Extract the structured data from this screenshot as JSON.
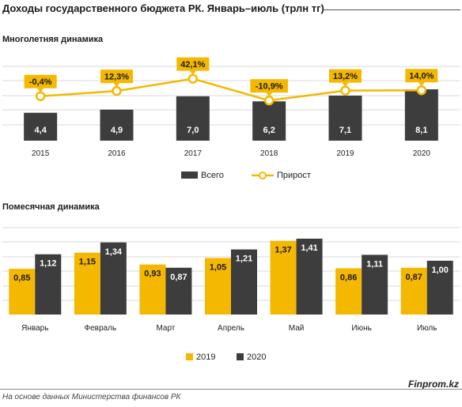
{
  "header": {
    "title": "Доходы государственного бюджета РК. Январь–июль (трлн тг)"
  },
  "colors": {
    "total": "#3d3d3d",
    "growth": "#f5b800",
    "y2019": "#f5b800",
    "y2020": "#3d3d3d",
    "grid": "#d9d9d9"
  },
  "chart_data": [
    {
      "type": "bar",
      "subtitle": "Многолетняя динамика",
      "categories": [
        "2015",
        "2016",
        "2017",
        "2018",
        "2019",
        "2020"
      ],
      "series": [
        {
          "name": "Всего",
          "type": "bar",
          "values": [
            4.4,
            4.9,
            7.0,
            6.2,
            7.1,
            8.1
          ],
          "labels": [
            "4,4",
            "4,9",
            "7,0",
            "6,2",
            "7,1",
            "8,1"
          ]
        },
        {
          "name": "Прирост",
          "type": "line",
          "values": [
            -0.4,
            12.3,
            42.1,
            -10.9,
            13.2,
            14.0
          ],
          "labels": [
            "-0,4%",
            "12,3%",
            "42,1%",
            "-10,9%",
            "13,2%",
            "14,0%"
          ]
        }
      ],
      "grid": true,
      "legend_position": "bottom"
    },
    {
      "type": "bar",
      "subtitle": "Помесячная  динамика",
      "categories": [
        "Январь",
        "Февраль",
        "Март",
        "Апрель",
        "Май",
        "Июнь",
        "Июль"
      ],
      "series": [
        {
          "name": "2019",
          "values": [
            0.85,
            1.15,
            0.93,
            1.05,
            1.37,
            0.86,
            0.87
          ],
          "labels": [
            "0,85",
            "1,15",
            "0,93",
            "1,05",
            "1,37",
            "0,86",
            "0,87"
          ]
        },
        {
          "name": "2020",
          "values": [
            1.12,
            1.34,
            0.87,
            1.21,
            1.41,
            1.11,
            1.0
          ],
          "labels": [
            "1,12",
            "1,34",
            "0,87",
            "1,21",
            "1,41",
            "1,11",
            "1,00"
          ]
        }
      ],
      "grid": true,
      "legend_position": "bottom"
    }
  ],
  "footer": {
    "source": "На основе данных  Министерства финансов РК",
    "brand": "Finprom.kz"
  }
}
